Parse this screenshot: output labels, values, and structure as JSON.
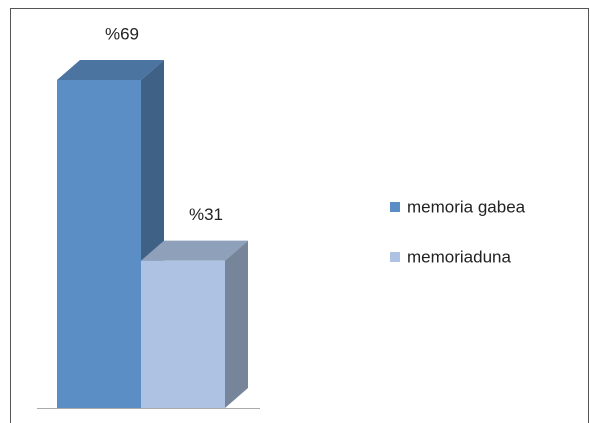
{
  "chart_data": {
    "type": "bar3d",
    "series": [
      {
        "name": "memoria gabea",
        "color": "#5b8ec4",
        "values": [
          69
        ],
        "value_labels": [
          "%69"
        ]
      },
      {
        "name": "memoriaduna",
        "color": "#aec3e3",
        "values": [
          31
        ],
        "value_labels": [
          "%31"
        ]
      }
    ]
  }
}
